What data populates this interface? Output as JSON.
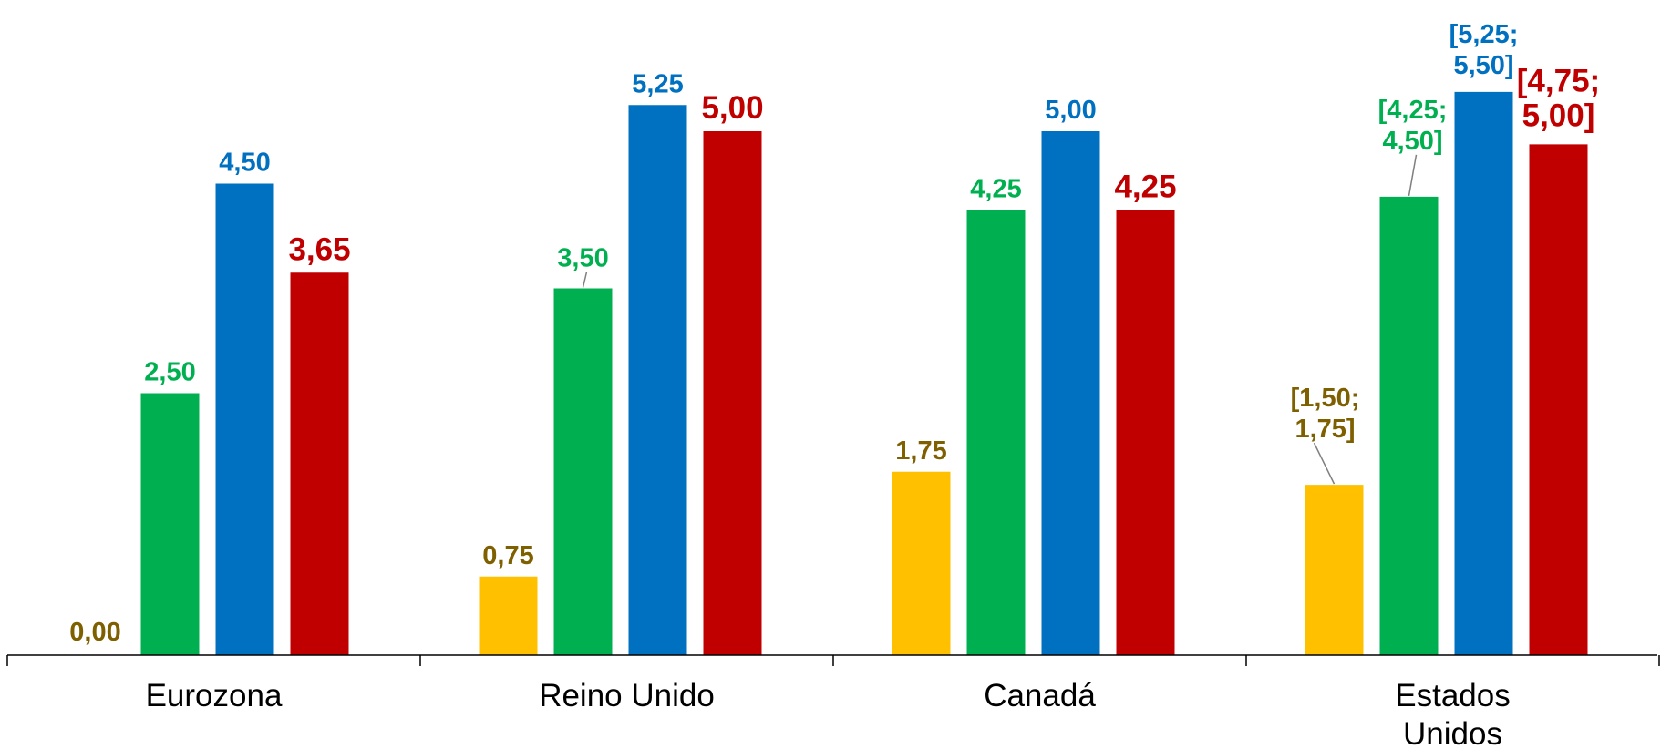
{
  "colors": {
    "series_1": "#FFC000",
    "series_2": "#00B050",
    "series_3": "#0070C0",
    "series_4": "#C00000",
    "label_1": "#7F6000",
    "axis": "#000000"
  },
  "chart_data": {
    "type": "bar",
    "title": "",
    "xlabel": "",
    "ylabel": "",
    "ylim": [
      0,
      5.5
    ],
    "grid": false,
    "legend": "none",
    "categories": [
      {
        "lines": [
          "Eurozona"
        ]
      },
      {
        "lines": [
          "Reino Unido"
        ]
      },
      {
        "lines": [
          "Canadá"
        ]
      },
      {
        "lines": [
          "Estados",
          "Unidos"
        ]
      }
    ],
    "series": [
      {
        "values": [
          0.0,
          0.75,
          1.75,
          1.625
        ],
        "labels": [
          [
            "0,00"
          ],
          [
            "0,75"
          ],
          [
            "1,75"
          ],
          [
            "[1,50;",
            "1,75]"
          ]
        ]
      },
      {
        "values": [
          2.5,
          3.5,
          4.25,
          4.375
        ],
        "labels": [
          [
            "2,50"
          ],
          [
            "3,50"
          ],
          [
            "4,25"
          ],
          [
            "[4,25;",
            "4,50]"
          ]
        ]
      },
      {
        "values": [
          4.5,
          5.25,
          5.0,
          5.375
        ],
        "labels": [
          [
            "4,50"
          ],
          [
            "5,25"
          ],
          [
            "5,00"
          ],
          [
            "[5,25;",
            "5,50]"
          ]
        ]
      },
      {
        "values": [
          3.65,
          5.0,
          4.25,
          4.875
        ],
        "labels": [
          [
            "3,65"
          ],
          [
            "5,00"
          ],
          [
            "4,25"
          ],
          [
            "[4,75;",
            "5,00]"
          ]
        ]
      }
    ]
  }
}
